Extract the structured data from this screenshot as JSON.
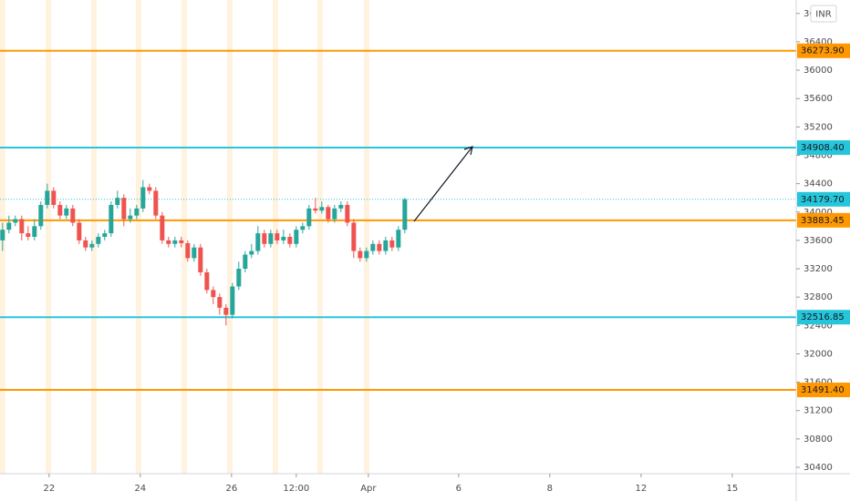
{
  "chart_data": {
    "type": "candlestick",
    "currency": "INR",
    "x": [
      0,
      1,
      2,
      3,
      4,
      5,
      6,
      7,
      8,
      9,
      10,
      11,
      12,
      13,
      14,
      15,
      16,
      17,
      18,
      19,
      20,
      21,
      22,
      23,
      24,
      25,
      26,
      27,
      28,
      29,
      30,
      31,
      32,
      33,
      34,
      35,
      36,
      37,
      38,
      39,
      40,
      41,
      42,
      43,
      44,
      45,
      46,
      47,
      48,
      49,
      50,
      51,
      52,
      53,
      54,
      55,
      56,
      57,
      58,
      59,
      60,
      61,
      62,
      63
    ],
    "open": [
      33600,
      33750,
      33850,
      33900,
      33700,
      33650,
      33800,
      34100,
      34300,
      34100,
      33950,
      34050,
      33850,
      33600,
      33500,
      33550,
      33650,
      33700,
      34100,
      34200,
      33900,
      33950,
      34050,
      34350,
      34300,
      33950,
      33600,
      33550,
      33600,
      33560,
      33350,
      33500,
      33150,
      32900,
      32800,
      32650,
      32550,
      32950,
      33200,
      33400,
      33450,
      33700,
      33550,
      33700,
      33600,
      33650,
      33550,
      33750,
      33800,
      34050,
      34020,
      34070,
      33900,
      34050,
      34100,
      33850,
      33450,
      33350,
      33450,
      33550,
      33450,
      33600,
      33500,
      33750
    ],
    "high": [
      33850,
      33950,
      33950,
      33950,
      33800,
      33900,
      34150,
      34400,
      34350,
      34150,
      34100,
      34100,
      33900,
      33650,
      33600,
      33700,
      33750,
      34150,
      34300,
      34250,
      34050,
      34100,
      34450,
      34400,
      34350,
      34000,
      33650,
      33650,
      33650,
      33600,
      33550,
      33550,
      33200,
      32950,
      32850,
      32700,
      33000,
      33300,
      33450,
      33550,
      33800,
      33750,
      33750,
      33750,
      33750,
      33700,
      33800,
      33850,
      34100,
      34200,
      34150,
      34100,
      34100,
      34150,
      34150,
      33900,
      33500,
      33500,
      33600,
      33600,
      33650,
      33650,
      33800,
      34200
    ],
    "low": [
      33450,
      33700,
      33800,
      33600,
      33600,
      33600,
      33750,
      34050,
      34050,
      33900,
      33900,
      33800,
      33550,
      33450,
      33450,
      33500,
      33600,
      33650,
      34050,
      33800,
      33850,
      33900,
      34000,
      34250,
      33900,
      33550,
      33500,
      33500,
      33500,
      33300,
      33300,
      33100,
      32850,
      32700,
      32550,
      32400,
      32500,
      32900,
      33150,
      33350,
      33400,
      33500,
      33500,
      33550,
      33550,
      33500,
      33500,
      33700,
      33750,
      33980,
      33980,
      33850,
      33850,
      34000,
      33800,
      33350,
      33300,
      33300,
      33400,
      33400,
      33400,
      33450,
      33450,
      33700
    ],
    "close": [
      33750,
      33850,
      33900,
      33700,
      33650,
      33800,
      34100,
      34300,
      34100,
      33950,
      34050,
      33850,
      33600,
      33500,
      33550,
      33650,
      33700,
      34100,
      34200,
      33900,
      33950,
      34050,
      34350,
      34300,
      33950,
      33600,
      33550,
      33600,
      33560,
      33350,
      33500,
      33150,
      32900,
      32800,
      32650,
      32550,
      32950,
      33200,
      33400,
      33450,
      33700,
      33550,
      33700,
      33600,
      33650,
      33550,
      33750,
      33800,
      34050,
      34020,
      34070,
      33900,
      34050,
      34100,
      33850,
      33450,
      33350,
      33450,
      33550,
      33450,
      33600,
      33500,
      33750,
      34180
    ],
    "up_color": "#26a69a",
    "down_color": "#ef5350",
    "last_price": {
      "value": 34179.7,
      "label": "34179.70",
      "color": "#26c6da"
    },
    "price_lines": [
      {
        "value": 36273.9,
        "label": "36273.90",
        "color": "#ff9800"
      },
      {
        "value": 34908.4,
        "label": "34908.40",
        "color": "#26c6da"
      },
      {
        "value": 33883.45,
        "label": "33883.45",
        "color": "#ff9800"
      },
      {
        "value": 32516.85,
        "label": "32516.85",
        "color": "#26c6da"
      },
      {
        "value": 31491.4,
        "label": "31491.40",
        "color": "#ff9800"
      }
    ],
    "xlim": [
      -0.4,
      124.3
    ],
    "ylim": [
      30310,
      36990
    ],
    "xticks": [
      {
        "value": 7.29,
        "label": "22"
      },
      {
        "value": 21.57,
        "label": "24"
      },
      {
        "value": 35.86,
        "label": "26"
      },
      {
        "value": 46,
        "label": "12:00"
      },
      {
        "value": 57.29,
        "label": "Apr"
      },
      {
        "value": 71.43,
        "label": "6"
      },
      {
        "value": 85.71,
        "label": "8"
      },
      {
        "value": 100,
        "label": "12"
      },
      {
        "value": 114.29,
        "label": "15"
      }
    ],
    "yticks": [
      30400,
      30800,
      31200,
      31600,
      32000,
      32400,
      32800,
      33200,
      33600,
      34000,
      34400,
      34800,
      35200,
      35600,
      36000,
      36400,
      36800
    ]
  }
}
